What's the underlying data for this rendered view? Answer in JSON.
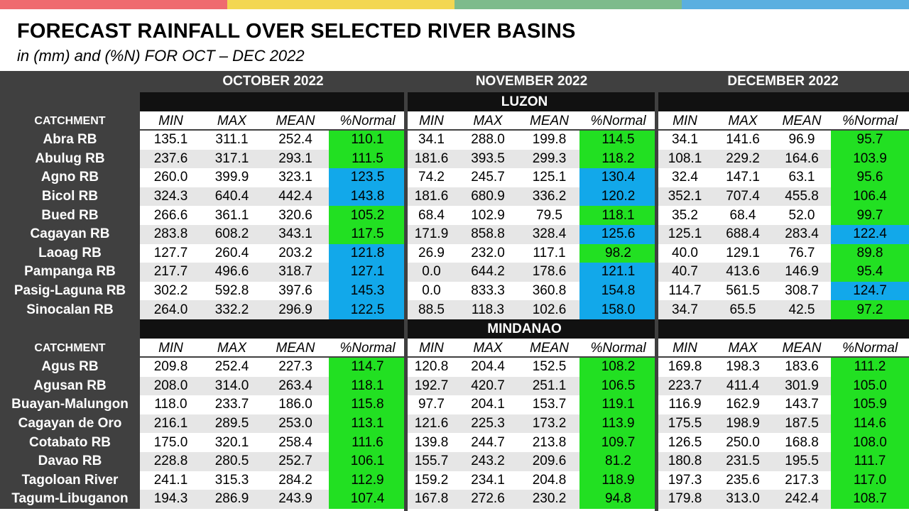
{
  "colors": {
    "top_bar": [
      "#ef6b6f",
      "#f3d752",
      "#7dbb8c",
      "#5aafe0"
    ],
    "header_dark": "#404040",
    "region_band": "#111111",
    "row_white": "#ffffff",
    "row_gray": "#e6e6e6",
    "green": "#22e022",
    "blue": "#12a8ea"
  },
  "title": "FORECAST RAINFALL OVER SELECTED RIVER BASINS",
  "subtitle": "in (mm) and (%N) FOR OCT – DEC 2022",
  "months": [
    "OCTOBER 2022",
    "NOVEMBER 2022",
    "DECEMBER 2022"
  ],
  "catchment_label": "CATCHMENT",
  "sub_headers": [
    "MIN",
    "MAX",
    "MEAN",
    "%Normal"
  ],
  "regions": [
    {
      "name": "LUZON",
      "rows": [
        {
          "name": "Abra RB",
          "oct": [
            "135.1",
            "311.1",
            "252.4",
            "110.1"
          ],
          "nov": [
            "34.1",
            "288.0",
            "199.8",
            "114.5"
          ],
          "dec": [
            "34.1",
            "141.6",
            "96.9",
            "95.7"
          ],
          "flags": [
            "green",
            "green",
            "green"
          ]
        },
        {
          "name": "Abulug RB",
          "oct": [
            "237.6",
            "317.1",
            "293.1",
            "111.5"
          ],
          "nov": [
            "181.6",
            "393.5",
            "299.3",
            "118.2"
          ],
          "dec": [
            "108.1",
            "229.2",
            "164.6",
            "103.9"
          ],
          "flags": [
            "green",
            "green",
            "green"
          ]
        },
        {
          "name": "Agno RB",
          "oct": [
            "260.0",
            "399.9",
            "323.1",
            "123.5"
          ],
          "nov": [
            "74.2",
            "245.7",
            "125.1",
            "130.4"
          ],
          "dec": [
            "32.4",
            "147.1",
            "63.1",
            "95.6"
          ],
          "flags": [
            "blue",
            "blue",
            "green"
          ]
        },
        {
          "name": "Bicol RB",
          "oct": [
            "324.3",
            "640.4",
            "442.4",
            "143.8"
          ],
          "nov": [
            "181.6",
            "680.9",
            "336.2",
            "120.2"
          ],
          "dec": [
            "352.1",
            "707.4",
            "455.8",
            "106.4"
          ],
          "flags": [
            "blue",
            "blue",
            "green"
          ]
        },
        {
          "name": "Bued RB",
          "oct": [
            "266.6",
            "361.1",
            "320.6",
            "105.2"
          ],
          "nov": [
            "68.4",
            "102.9",
            "79.5",
            "118.1"
          ],
          "dec": [
            "35.2",
            "68.4",
            "52.0",
            "99.7"
          ],
          "flags": [
            "green",
            "green",
            "green"
          ]
        },
        {
          "name": "Cagayan RB",
          "oct": [
            "283.8",
            "608.2",
            "343.1",
            "117.5"
          ],
          "nov": [
            "171.9",
            "858.8",
            "328.4",
            "125.6"
          ],
          "dec": [
            "125.1",
            "688.4",
            "283.4",
            "122.4"
          ],
          "flags": [
            "green",
            "blue",
            "blue"
          ]
        },
        {
          "name": "Laoag RB",
          "oct": [
            "127.7",
            "260.4",
            "203.2",
            "121.8"
          ],
          "nov": [
            "26.9",
            "232.0",
            "117.1",
            "98.2"
          ],
          "dec": [
            "40.0",
            "129.1",
            "76.7",
            "89.8"
          ],
          "flags": [
            "blue",
            "green",
            "green"
          ]
        },
        {
          "name": "Pampanga RB",
          "oct": [
            "217.7",
            "496.6",
            "318.7",
            "127.1"
          ],
          "nov": [
            "0.0",
            "644.2",
            "178.6",
            "121.1"
          ],
          "dec": [
            "40.7",
            "413.6",
            "146.9",
            "95.4"
          ],
          "flags": [
            "blue",
            "blue",
            "green"
          ]
        },
        {
          "name": "Pasig-Laguna RB",
          "oct": [
            "302.2",
            "592.8",
            "397.6",
            "145.3"
          ],
          "nov": [
            "0.0",
            "833.3",
            "360.8",
            "154.8"
          ],
          "dec": [
            "114.7",
            "561.5",
            "308.7",
            "124.7"
          ],
          "flags": [
            "blue",
            "blue",
            "blue"
          ]
        },
        {
          "name": "Sinocalan RB",
          "oct": [
            "264.0",
            "332.2",
            "296.9",
            "122.5"
          ],
          "nov": [
            "88.5",
            "118.3",
            "102.6",
            "158.0"
          ],
          "dec": [
            "34.7",
            "65.5",
            "42.5",
            "97.2"
          ],
          "flags": [
            "blue",
            "blue",
            "green"
          ]
        }
      ]
    },
    {
      "name": "MINDANAO",
      "rows": [
        {
          "name": "Agus RB",
          "oct": [
            "209.8",
            "252.4",
            "227.3",
            "114.7"
          ],
          "nov": [
            "120.8",
            "204.4",
            "152.5",
            "108.2"
          ],
          "dec": [
            "169.8",
            "198.3",
            "183.6",
            "111.2"
          ],
          "flags": [
            "green",
            "green",
            "green"
          ]
        },
        {
          "name": "Agusan RB",
          "oct": [
            "208.0",
            "314.0",
            "263.4",
            "118.1"
          ],
          "nov": [
            "192.7",
            "420.7",
            "251.1",
            "106.5"
          ],
          "dec": [
            "223.7",
            "411.4",
            "301.9",
            "105.0"
          ],
          "flags": [
            "green",
            "green",
            "green"
          ]
        },
        {
          "name": "Buayan-Malungon",
          "oct": [
            "118.0",
            "233.7",
            "186.0",
            "115.8"
          ],
          "nov": [
            "97.7",
            "204.1",
            "153.7",
            "119.1"
          ],
          "dec": [
            "116.9",
            "162.9",
            "143.7",
            "105.9"
          ],
          "flags": [
            "green",
            "green",
            "green"
          ]
        },
        {
          "name": "Cagayan de Oro",
          "oct": [
            "216.1",
            "289.5",
            "253.0",
            "113.1"
          ],
          "nov": [
            "121.6",
            "225.3",
            "173.2",
            "113.9"
          ],
          "dec": [
            "175.5",
            "198.9",
            "187.5",
            "114.6"
          ],
          "flags": [
            "green",
            "green",
            "green"
          ]
        },
        {
          "name": "Cotabato RB",
          "oct": [
            "175.0",
            "320.1",
            "258.4",
            "111.6"
          ],
          "nov": [
            "139.8",
            "244.7",
            "213.8",
            "109.7"
          ],
          "dec": [
            "126.5",
            "250.0",
            "168.8",
            "108.0"
          ],
          "flags": [
            "green",
            "green",
            "green"
          ]
        },
        {
          "name": "Davao RB",
          "oct": [
            "228.8",
            "280.5",
            "252.7",
            "106.1"
          ],
          "nov": [
            "155.7",
            "243.2",
            "209.6",
            "81.2"
          ],
          "dec": [
            "180.8",
            "231.5",
            "195.5",
            "111.7"
          ],
          "flags": [
            "green",
            "green",
            "green"
          ]
        },
        {
          "name": "Tagoloan River",
          "oct": [
            "241.1",
            "315.3",
            "284.2",
            "112.9"
          ],
          "nov": [
            "159.2",
            "234.1",
            "204.8",
            "118.9"
          ],
          "dec": [
            "197.3",
            "235.6",
            "217.3",
            "117.0"
          ],
          "flags": [
            "green",
            "green",
            "green"
          ]
        },
        {
          "name": "Tagum-Libuganon",
          "oct": [
            "194.3",
            "286.9",
            "243.9",
            "107.4"
          ],
          "nov": [
            "167.8",
            "272.6",
            "230.2",
            "94.8"
          ],
          "dec": [
            "179.8",
            "313.0",
            "242.4",
            "108.7"
          ],
          "flags": [
            "green",
            "green",
            "green"
          ]
        }
      ]
    }
  ]
}
